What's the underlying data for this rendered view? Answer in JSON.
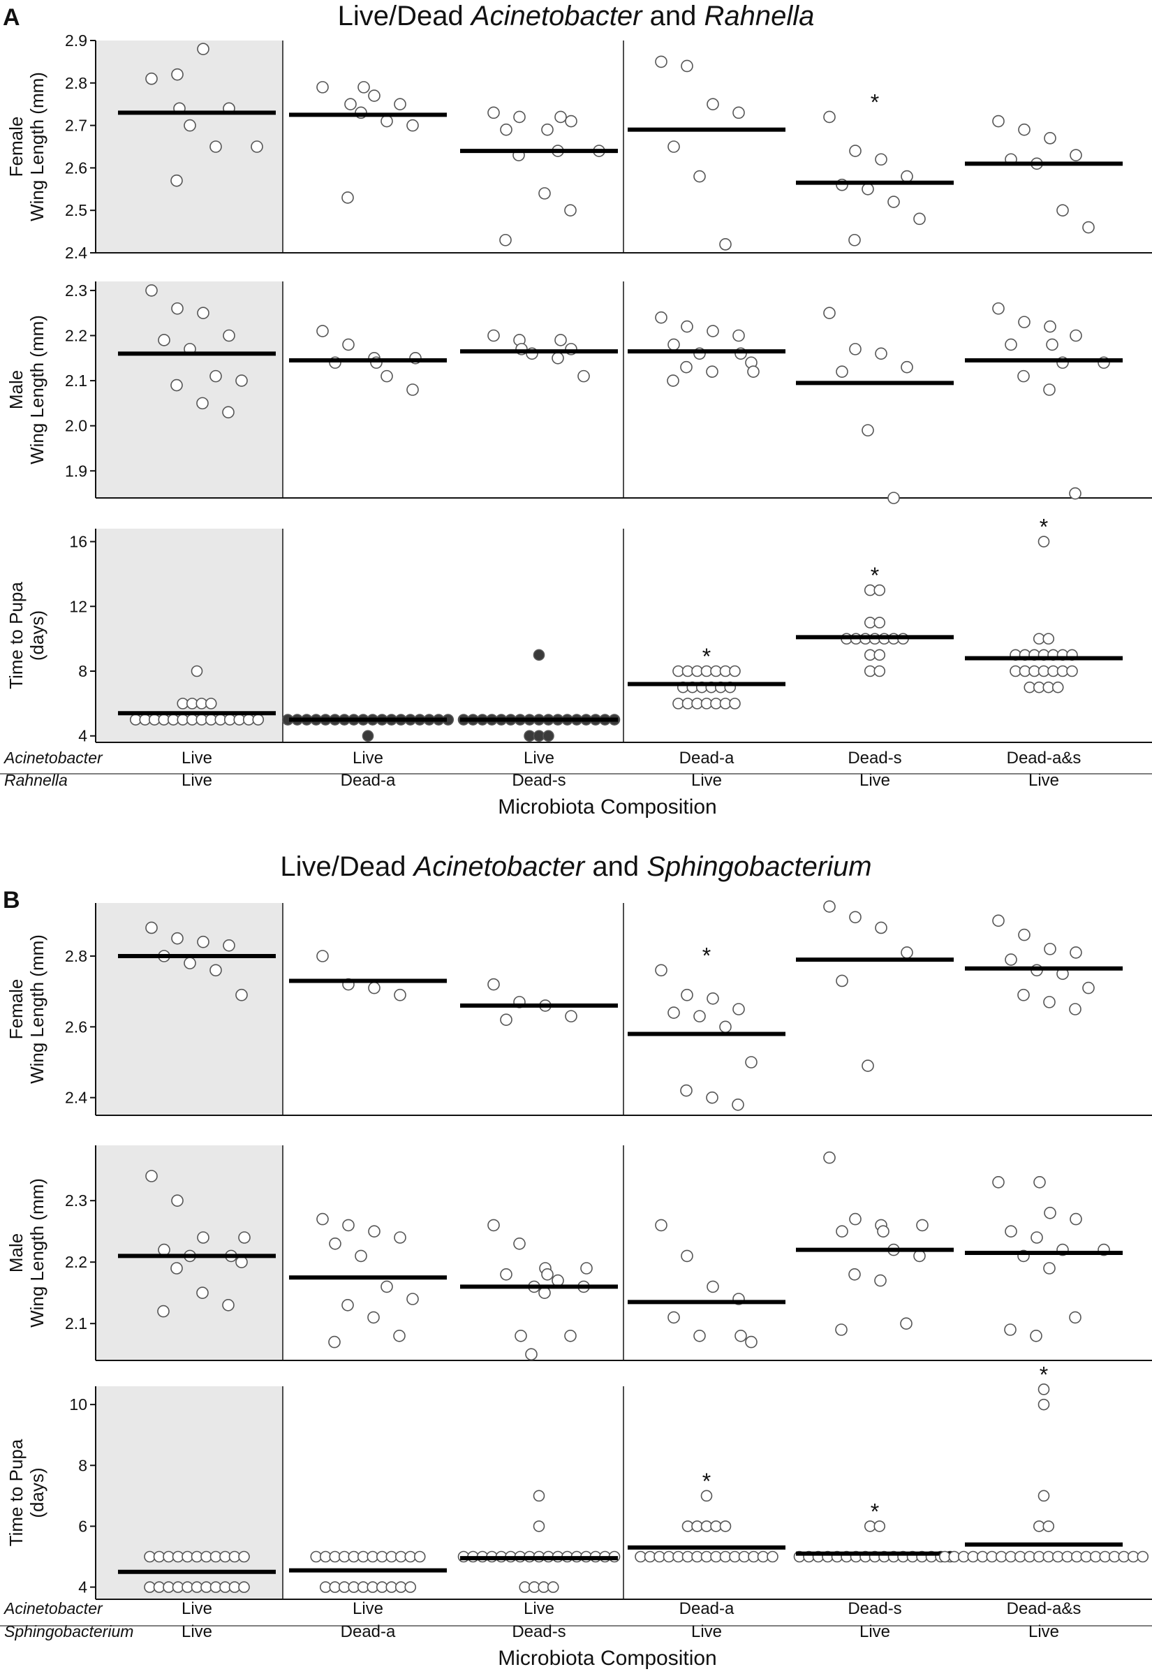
{
  "chart_data": [
    {
      "type": "scatter",
      "panel_letter": "A",
      "title_parts": [
        {
          "text": "Live/Dead ",
          "italic": false
        },
        {
          "text": "Acinetobacter",
          "italic": true
        },
        {
          "text": " and ",
          "italic": false
        },
        {
          "text": "Rahnella",
          "italic": true
        }
      ],
      "xlabel": "Microbiota Composition",
      "row_labels": [
        "Acinetobacter",
        "Rahnella"
      ],
      "categories": [
        {
          "top": "Live",
          "bottom": "Live"
        },
        {
          "top": "Live",
          "bottom": "Dead-a"
        },
        {
          "top": "Live",
          "bottom": "Dead-s"
        },
        {
          "top": "Dead-a",
          "bottom": "Live"
        },
        {
          "top": "Dead-s",
          "bottom": "Live"
        },
        {
          "top": "Dead-a&s",
          "bottom": "Live"
        }
      ],
      "control_group": 0,
      "separators_after": [
        0,
        2
      ],
      "subplots": [
        {
          "ylabel": [
            "Female",
            "Wing Length (mm)"
          ],
          "ylim": [
            2.4,
            2.9
          ],
          "yticks": [
            2.4,
            2.5,
            2.6,
            2.7,
            2.8,
            2.9
          ],
          "groups": [
            {
              "mean": 2.73,
              "points": [
                2.81,
                2.82,
                2.88,
                2.74,
                2.74,
                2.7,
                2.65,
                2.65,
                2.57
              ]
            },
            {
              "mean": 2.725,
              "points": [
                2.79,
                2.79,
                2.77,
                2.75,
                2.75,
                2.73,
                2.71,
                2.7,
                2.53
              ]
            },
            {
              "mean": 2.64,
              "points": [
                2.73,
                2.72,
                2.72,
                2.71,
                2.69,
                2.69,
                2.64,
                2.64,
                2.63,
                2.54,
                2.5,
                2.43
              ]
            },
            {
              "mean": 2.69,
              "points": [
                2.85,
                2.84,
                2.75,
                2.73,
                2.65,
                2.58,
                2.42
              ]
            },
            {
              "mean": 2.565,
              "star": true,
              "points": [
                2.72,
                2.64,
                2.62,
                2.58,
                2.56,
                2.55,
                2.52,
                2.48,
                2.43
              ]
            },
            {
              "mean": 2.61,
              "points": [
                2.71,
                2.69,
                2.67,
                2.63,
                2.62,
                2.61,
                2.5,
                2.46
              ]
            }
          ]
        },
        {
          "ylabel": [
            "Male",
            "Wing Length (mm)"
          ],
          "ylim": [
            1.84,
            2.32
          ],
          "yticks": [
            1.9,
            2.0,
            2.1,
            2.2,
            2.3
          ],
          "groups": [
            {
              "mean": 2.16,
              "points": [
                2.3,
                2.26,
                2.25,
                2.2,
                2.19,
                2.17,
                2.11,
                2.1,
                2.09,
                2.05,
                2.03
              ]
            },
            {
              "mean": 2.145,
              "points": [
                2.21,
                2.18,
                2.15,
                2.15,
                2.14,
                2.14,
                2.11,
                2.08
              ]
            },
            {
              "mean": 2.165,
              "points": [
                2.2,
                2.19,
                2.19,
                2.17,
                2.17,
                2.16,
                2.15,
                2.11
              ]
            },
            {
              "mean": 2.165,
              "points": [
                2.24,
                2.22,
                2.21,
                2.2,
                2.18,
                2.16,
                2.16,
                2.14,
                2.13,
                2.12,
                2.12,
                2.1
              ]
            },
            {
              "mean": 2.095,
              "points": [
                2.25,
                2.17,
                2.16,
                2.13,
                2.12,
                1.99,
                1.84
              ]
            },
            {
              "mean": 2.145,
              "points": [
                2.26,
                2.23,
                2.22,
                2.2,
                2.18,
                2.18,
                2.14,
                2.14,
                2.11,
                2.08,
                1.85
              ]
            }
          ]
        },
        {
          "ylabel": [
            "Time to Pupa",
            "(days)"
          ],
          "ylim": [
            3.6,
            16.8
          ],
          "yticks": [
            4,
            8,
            12,
            16
          ],
          "groups": [
            {
              "mean": 5.4,
              "dense": true,
              "counts": {
                "5": 14,
                "6": 4,
                "8": 1
              }
            },
            {
              "mean": 5.0,
              "filled": true,
              "dense": true,
              "counts": {
                "4": 1,
                "5": 18
              }
            },
            {
              "mean": 5.0,
              "filled": true,
              "dense": true,
              "counts": {
                "4": 3,
                "5": 17,
                "9": 1
              }
            },
            {
              "mean": 7.2,
              "star": true,
              "dense": true,
              "counts": {
                "6": 7,
                "7": 6,
                "8": 7
              }
            },
            {
              "mean": 10.1,
              "star": true,
              "dense": true,
              "counts": {
                "8": 2,
                "9": 2,
                "10": 7,
                "11": 2,
                "13": 2
              }
            },
            {
              "mean": 8.8,
              "star": true,
              "dense": true,
              "counts": {
                "7": 4,
                "8": 7,
                "9": 7,
                "10": 2,
                "16": 1
              }
            }
          ]
        }
      ]
    },
    {
      "type": "scatter",
      "panel_letter": "B",
      "title_parts": [
        {
          "text": "Live/Dead ",
          "italic": false
        },
        {
          "text": "Acinetobacter",
          "italic": true
        },
        {
          "text": " and ",
          "italic": false
        },
        {
          "text": "Sphingobacterium",
          "italic": true
        }
      ],
      "xlabel": "Microbiota Composition",
      "row_labels": [
        "Acinetobacter",
        "Sphingobacterium"
      ],
      "categories": [
        {
          "top": "Live",
          "bottom": "Live"
        },
        {
          "top": "Live",
          "bottom": "Dead-a"
        },
        {
          "top": "Live",
          "bottom": "Dead-s"
        },
        {
          "top": "Dead-a",
          "bottom": "Live"
        },
        {
          "top": "Dead-s",
          "bottom": "Live"
        },
        {
          "top": "Dead-a&s",
          "bottom": "Live"
        }
      ],
      "control_group": 0,
      "separators_after": [
        0,
        2
      ],
      "subplots": [
        {
          "ylabel": [
            "Female",
            "Wing Length (mm)"
          ],
          "ylim": [
            2.35,
            2.95
          ],
          "yticks": [
            2.4,
            2.6,
            2.8
          ],
          "groups": [
            {
              "mean": 2.8,
              "points": [
                2.88,
                2.85,
                2.84,
                2.83,
                2.8,
                2.78,
                2.76,
                2.69
              ]
            },
            {
              "mean": 2.73,
              "points": [
                2.8,
                2.72,
                2.71,
                2.69
              ]
            },
            {
              "mean": 2.66,
              "points": [
                2.72,
                2.67,
                2.66,
                2.63,
                2.62
              ]
            },
            {
              "mean": 2.58,
              "star": true,
              "points": [
                2.76,
                2.69,
                2.68,
                2.65,
                2.64,
                2.63,
                2.6,
                2.5,
                2.42,
                2.4,
                2.38
              ]
            },
            {
              "mean": 2.79,
              "points": [
                2.94,
                2.91,
                2.88,
                2.81,
                2.73,
                2.49
              ]
            },
            {
              "mean": 2.765,
              "points": [
                2.9,
                2.86,
                2.82,
                2.81,
                2.79,
                2.76,
                2.75,
                2.71,
                2.69,
                2.67,
                2.65
              ]
            }
          ]
        },
        {
          "ylabel": [
            "Male",
            "Wing Length (mm)"
          ],
          "ylim": [
            2.04,
            2.39
          ],
          "yticks": [
            2.1,
            2.2,
            2.3
          ],
          "groups": [
            {
              "mean": 2.21,
              "points": [
                2.34,
                2.3,
                2.24,
                2.24,
                2.22,
                2.21,
                2.21,
                2.2,
                2.19,
                2.15,
                2.13,
                2.12
              ]
            },
            {
              "mean": 2.175,
              "points": [
                2.27,
                2.26,
                2.25,
                2.24,
                2.23,
                2.21,
                2.16,
                2.14,
                2.13,
                2.11,
                2.08,
                2.07
              ]
            },
            {
              "mean": 2.16,
              "points": [
                2.26,
                2.23,
                2.19,
                2.19,
                2.18,
                2.18,
                2.17,
                2.16,
                2.16,
                2.15,
                2.08,
                2.08,
                2.05
              ]
            },
            {
              "mean": 2.135,
              "points": [
                2.26,
                2.21,
                2.16,
                2.14,
                2.11,
                2.08,
                2.08,
                2.07
              ]
            },
            {
              "mean": 2.22,
              "points": [
                2.37,
                2.27,
                2.26,
                2.26,
                2.25,
                2.25,
                2.22,
                2.21,
                2.18,
                2.17,
                2.1,
                2.09
              ]
            },
            {
              "mean": 2.215,
              "points": [
                2.33,
                2.33,
                2.28,
                2.27,
                2.25,
                2.24,
                2.22,
                2.22,
                2.21,
                2.19,
                2.11,
                2.09,
                2.08
              ]
            }
          ]
        },
        {
          "ylabel": [
            "Time to Pupa",
            "(days)"
          ],
          "ylim": [
            3.6,
            10.6
          ],
          "yticks": [
            4,
            6,
            8,
            10
          ],
          "groups": [
            {
              "mean": 4.5,
              "dense": true,
              "counts": {
                "4": 11,
                "5": 11
              }
            },
            {
              "mean": 4.55,
              "dense": true,
              "counts": {
                "4": 10,
                "5": 12
              }
            },
            {
              "mean": 4.95,
              "dense": true,
              "counts": {
                "4": 4,
                "5": 17,
                "6": 1,
                "7": 1
              }
            },
            {
              "mean": 5.3,
              "star": true,
              "dense": true,
              "counts": {
                "5": 15,
                "6": 5,
                "7": 1
              }
            },
            {
              "mean": 5.1,
              "star": true,
              "dense": true,
              "counts": {
                "5": 17,
                "6": 2
              }
            },
            {
              "mean": 5.4,
              "star": true,
              "dense": true,
              "counts": {
                "5": 22,
                "6": 2,
                "7": 1,
                "10": 1,
                "10.5": 1
              }
            }
          ]
        }
      ]
    }
  ]
}
